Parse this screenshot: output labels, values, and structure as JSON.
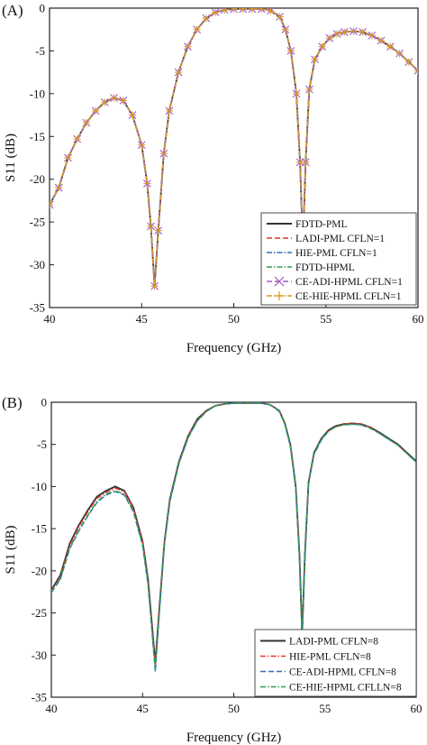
{
  "chart_data": [
    {
      "panel_label": "(A)",
      "type": "line",
      "xlabel": "Frequency (GHz)",
      "ylabel": "S11 (dB)",
      "xlim": [
        40,
        60
      ],
      "ylim": [
        -35,
        0
      ],
      "xticks": [
        40,
        45,
        50,
        55,
        60
      ],
      "yticks": [
        0,
        -5,
        -10,
        -15,
        -20,
        -25,
        -30,
        -35
      ],
      "grid": false,
      "legend_position": "bottom-right",
      "x": [
        40,
        40.5,
        41,
        41.5,
        42,
        42.5,
        43,
        43.5,
        44,
        44.5,
        45,
        45.3,
        45.5,
        45.7,
        45.9,
        46.2,
        46.5,
        47,
        47.5,
        48,
        48.5,
        49,
        49.5,
        50,
        50.5,
        51,
        51.5,
        52,
        52.5,
        52.8,
        53.1,
        53.4,
        53.6,
        53.75,
        53.9,
        54.1,
        54.4,
        54.8,
        55.2,
        55.6,
        56,
        56.5,
        57,
        57.5,
        58,
        58.5,
        59,
        59.5,
        60
      ],
      "series": [
        {
          "name": "FDTD-PML",
          "color": "#333333",
          "dash": "solid",
          "marker": "none",
          "values": [
            -23.0,
            -21.0,
            -17.5,
            -15.3,
            -13.4,
            -12.0,
            -11.0,
            -10.5,
            -10.8,
            -12.5,
            -16.0,
            -20.5,
            -25.5,
            -32.5,
            -26.0,
            -17.0,
            -12.0,
            -7.5,
            -4.5,
            -2.5,
            -1.2,
            -0.5,
            -0.2,
            -0.1,
            -0.1,
            -0.1,
            -0.1,
            -0.3,
            -1.0,
            -2.5,
            -5.0,
            -10.0,
            -18.0,
            -28.0,
            -18.0,
            -9.5,
            -6.0,
            -4.5,
            -3.5,
            -3.0,
            -2.8,
            -2.7,
            -2.8,
            -3.2,
            -3.8,
            -4.5,
            -5.3,
            -6.3,
            -7.3
          ]
        },
        {
          "name": "LADI-PML CFLN=1",
          "color": "#e8342c",
          "dash": "dashed",
          "marker": "none",
          "values": [
            -23.0,
            -21.0,
            -17.5,
            -15.3,
            -13.4,
            -12.0,
            -11.0,
            -10.5,
            -10.8,
            -12.5,
            -16.0,
            -20.5,
            -25.5,
            -32.5,
            -26.0,
            -17.0,
            -12.0,
            -7.5,
            -4.5,
            -2.5,
            -1.2,
            -0.5,
            -0.2,
            -0.1,
            -0.1,
            -0.1,
            -0.1,
            -0.3,
            -1.0,
            -2.5,
            -5.0,
            -10.0,
            -18.0,
            -28.0,
            -18.0,
            -9.5,
            -6.0,
            -4.5,
            -3.5,
            -3.0,
            -2.8,
            -2.7,
            -2.8,
            -3.2,
            -3.8,
            -4.5,
            -5.3,
            -6.3,
            -7.3
          ]
        },
        {
          "name": "HIE-PML CFLN=1",
          "color": "#2e6fb8",
          "dash": "dashdot",
          "marker": "none",
          "values": [
            -23.0,
            -21.0,
            -17.5,
            -15.3,
            -13.4,
            -12.0,
            -11.0,
            -10.5,
            -10.8,
            -12.5,
            -16.0,
            -20.5,
            -25.5,
            -32.5,
            -26.0,
            -17.0,
            -12.0,
            -7.5,
            -4.5,
            -2.5,
            -1.2,
            -0.5,
            -0.2,
            -0.1,
            -0.1,
            -0.1,
            -0.1,
            -0.3,
            -1.0,
            -2.5,
            -5.0,
            -10.0,
            -18.0,
            -28.0,
            -18.0,
            -9.5,
            -6.0,
            -4.5,
            -3.5,
            -3.0,
            -2.8,
            -2.7,
            -2.8,
            -3.2,
            -3.8,
            -4.5,
            -5.3,
            -6.3,
            -7.3
          ]
        },
        {
          "name": "FDTD-HPML",
          "color": "#2f9e4f",
          "dash": "dashdot",
          "marker": "none",
          "values": [
            -23.0,
            -21.0,
            -17.5,
            -15.3,
            -13.4,
            -12.0,
            -11.0,
            -10.5,
            -10.8,
            -12.5,
            -16.0,
            -20.5,
            -25.5,
            -32.5,
            -26.0,
            -17.0,
            -12.0,
            -7.5,
            -4.5,
            -2.5,
            -1.2,
            -0.5,
            -0.2,
            -0.1,
            -0.1,
            -0.1,
            -0.1,
            -0.3,
            -1.0,
            -2.5,
            -5.0,
            -10.0,
            -18.0,
            -28.0,
            -18.0,
            -9.5,
            -6.0,
            -4.5,
            -3.5,
            -3.0,
            -2.8,
            -2.7,
            -2.8,
            -3.2,
            -3.8,
            -4.5,
            -5.3,
            -6.3,
            -7.3
          ]
        },
        {
          "name": "CE-ADI-HPML CFLN=1",
          "color": "#a05ac8",
          "dash": "dashed",
          "marker": "x",
          "values": [
            -23.0,
            -21.0,
            -17.5,
            -15.3,
            -13.4,
            -12.0,
            -11.0,
            -10.5,
            -10.8,
            -12.5,
            -16.0,
            -20.5,
            -25.5,
            -32.5,
            -26.0,
            -17.0,
            -12.0,
            -7.5,
            -4.5,
            -2.5,
            -1.2,
            -0.5,
            -0.2,
            -0.1,
            -0.1,
            -0.1,
            -0.1,
            -0.3,
            -1.0,
            -2.5,
            -5.0,
            -10.0,
            -18.0,
            -28.0,
            -18.0,
            -9.5,
            -6.0,
            -4.5,
            -3.5,
            -3.0,
            -2.8,
            -2.7,
            -2.8,
            -3.2,
            -3.8,
            -4.5,
            -5.3,
            -6.3,
            -7.3
          ]
        },
        {
          "name": "CE-HIE-HPML CFLN=1",
          "color": "#d99a1c",
          "dash": "dashdot",
          "marker": "plus",
          "values": [
            -23.0,
            -21.0,
            -17.5,
            -15.3,
            -13.4,
            -12.0,
            -11.0,
            -10.5,
            -10.8,
            -12.5,
            -16.0,
            -20.5,
            -25.5,
            -32.5,
            -26.0,
            -17.0,
            -12.0,
            -7.5,
            -4.5,
            -2.5,
            -1.2,
            -0.5,
            -0.2,
            -0.1,
            -0.1,
            -0.1,
            -0.1,
            -0.3,
            -1.0,
            -2.5,
            -5.0,
            -10.0,
            -18.0,
            -28.0,
            -18.0,
            -9.5,
            -6.0,
            -4.5,
            -3.5,
            -3.0,
            -2.8,
            -2.7,
            -2.8,
            -3.2,
            -3.8,
            -4.5,
            -5.3,
            -6.3,
            -7.3
          ]
        }
      ]
    },
    {
      "panel_label": "(B)",
      "type": "line",
      "xlabel": "Frequency (GHz)",
      "ylabel": "S11 (dB)",
      "xlim": [
        40,
        60
      ],
      "ylim": [
        -35,
        0
      ],
      "xticks": [
        40,
        45,
        50,
        55,
        60
      ],
      "yticks": [
        0,
        -5,
        -10,
        -15,
        -20,
        -25,
        -30,
        -35
      ],
      "grid": false,
      "legend_position": "bottom-right",
      "x": [
        40,
        40.5,
        41,
        41.5,
        42,
        42.5,
        43,
        43.5,
        44,
        44.5,
        45,
        45.3,
        45.5,
        45.7,
        45.9,
        46.2,
        46.5,
        47,
        47.5,
        48,
        48.5,
        49,
        49.5,
        50,
        50.5,
        51,
        51.5,
        52,
        52.5,
        52.8,
        53.1,
        53.4,
        53.6,
        53.75,
        53.9,
        54.1,
        54.4,
        54.8,
        55.2,
        55.6,
        56,
        56.5,
        57,
        57.5,
        58,
        58.5,
        59,
        59.5,
        60
      ],
      "series": [
        {
          "name": "",
          "color": "#333333",
          "dash": "solid",
          "marker": "none",
          "values": [
            -22.3,
            -20.5,
            -16.8,
            -14.6,
            -12.8,
            -11.2,
            -10.5,
            -10.0,
            -10.5,
            -12.5,
            -16.5,
            -21.0,
            -26.0,
            -31.0,
            -25.0,
            -16.5,
            -11.5,
            -7.0,
            -4.0,
            -2.0,
            -1.0,
            -0.4,
            -0.2,
            -0.1,
            -0.1,
            -0.1,
            -0.1,
            -0.3,
            -1.0,
            -2.5,
            -5.0,
            -10.0,
            -18.0,
            -27.5,
            -18.0,
            -9.5,
            -6.0,
            -4.3,
            -3.3,
            -2.8,
            -2.6,
            -2.5,
            -2.6,
            -3.0,
            -3.6,
            -4.3,
            -5.0,
            -6.0,
            -7.0
          ]
        },
        {
          "name": "LADI-PML CFLN=8",
          "color": "#e8342c",
          "dash": "dashdot",
          "marker": "none",
          "values": [
            -22.4,
            -20.7,
            -17.0,
            -14.8,
            -13.0,
            -11.4,
            -10.7,
            -10.2,
            -10.6,
            -12.6,
            -16.6,
            -21.2,
            -26.3,
            -31.3,
            -25.2,
            -16.6,
            -11.6,
            -7.1,
            -4.1,
            -2.1,
            -1.0,
            -0.4,
            -0.2,
            -0.1,
            -0.1,
            -0.1,
            -0.1,
            -0.3,
            -1.0,
            -2.6,
            -5.1,
            -10.1,
            -18.2,
            -27.7,
            -18.2,
            -9.6,
            -6.1,
            -4.4,
            -3.4,
            -2.9,
            -2.6,
            -2.5,
            -2.6,
            -3.0,
            -3.7,
            -4.4,
            -5.1,
            -6.1,
            -7.1
          ]
        },
        {
          "name": "HIE-PML CFLN=8",
          "color": "#2e6fb8",
          "dash": "dashed",
          "marker": "none",
          "values": [
            -22.6,
            -21.0,
            -17.4,
            -15.3,
            -13.5,
            -11.9,
            -11.0,
            -10.6,
            -11.0,
            -13.0,
            -17.0,
            -21.6,
            -26.8,
            -32.0,
            -25.6,
            -16.8,
            -11.8,
            -7.2,
            -4.2,
            -2.2,
            -1.1,
            -0.4,
            -0.2,
            -0.1,
            -0.1,
            -0.1,
            -0.1,
            -0.3,
            -1.1,
            -2.6,
            -5.2,
            -10.2,
            -18.4,
            -28.0,
            -18.4,
            -9.7,
            -6.2,
            -4.5,
            -3.4,
            -2.9,
            -2.7,
            -2.6,
            -2.7,
            -3.1,
            -3.7,
            -4.4,
            -5.1,
            -6.1,
            -7.1
          ]
        },
        {
          "name": "CE-ADI-HPML CFLN=8",
          "color": "#2f9e4f",
          "dash": "dashdot",
          "marker": "none",
          "values": [
            -22.5,
            -20.9,
            -17.3,
            -15.2,
            -13.4,
            -11.8,
            -10.9,
            -10.5,
            -10.9,
            -12.9,
            -16.9,
            -21.5,
            -26.6,
            -31.8,
            -25.5,
            -16.7,
            -11.7,
            -7.2,
            -4.2,
            -2.2,
            -1.1,
            -0.4,
            -0.2,
            -0.1,
            -0.1,
            -0.1,
            -0.1,
            -0.3,
            -1.0,
            -2.6,
            -5.1,
            -10.1,
            -18.3,
            -27.9,
            -18.3,
            -9.6,
            -6.1,
            -4.4,
            -3.4,
            -2.9,
            -2.7,
            -2.6,
            -2.7,
            -3.1,
            -3.7,
            -4.4,
            -5.1,
            -6.1,
            -7.1
          ]
        }
      ],
      "legend_entries": [
        "LADI-PML CFLN=8",
        "HIE-PML CFLN=8",
        "CE-ADI-HPML CFLN=8",
        "CE-HIE-HPML CFLLN=8"
      ]
    }
  ]
}
